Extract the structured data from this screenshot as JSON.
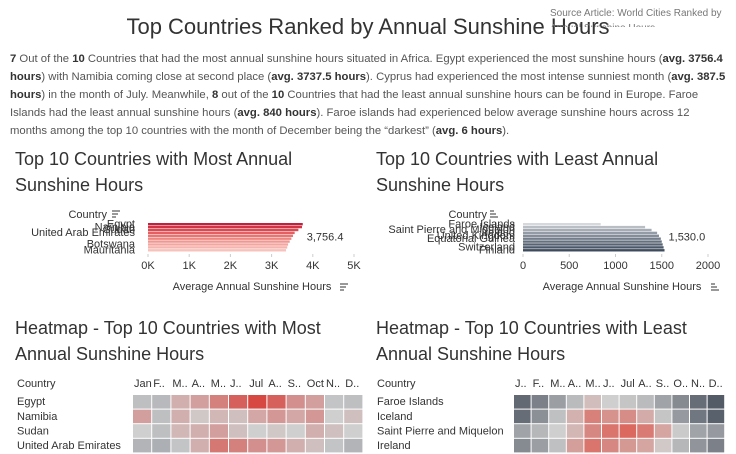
{
  "header": {
    "title": "Top Countries Ranked by Annual Sunshine Hours",
    "source": "Source Article: World Cities Ranked by Annual Sunshine Hours"
  },
  "summary": [
    "7",
    " Out of the ",
    "10",
    " Countries that had the most annual sunshine hours situated in Africa. Egypt experienced the most sunshine hours (",
    "avg. 3756.4 hours",
    ") with Namibia coming close at second place (",
    "avg. 3737.5 hours",
    "). Cyprus had experienced the most intense sunniest month (",
    "avg. 387.5 hours",
    ") in the month of July. Meanwhile, ",
    "8",
    " out of the ",
    "10",
    " Countries that had the least annual sunshine hours can be found in Europe. Faroe Islands had the least annual sunshine hours (",
    "avg. 840 hours",
    "). Faroe islands had experienced below average sunshine hours across 12 months among the top 10 countries with the month of December being the “darkest” (",
    "avg. 6 hours",
    ")."
  ],
  "chart_data": [
    {
      "type": "bar",
      "title": "Top 10 Countries with Most Annual Sunshine Hours",
      "category_label": "Country",
      "x_label": "Average Annual Sunshine Hours",
      "categories": [
        "Egypt",
        "Namibia",
        "Sudan",
        "United Arab Emirates",
        null,
        null,
        null,
        "Botswana",
        null,
        "Mauritania"
      ],
      "values": [
        3756.4,
        3737.5,
        3650,
        3560,
        3520,
        3480,
        3440,
        3400,
        3380,
        3350
      ],
      "value_labels": [
        "3,756.4",
        null,
        null,
        null,
        null,
        null,
        null,
        null,
        null,
        null
      ],
      "colors": [
        "#c2203c",
        "#cf3344",
        "#db4a52",
        "#e45f62",
        "#ea7371",
        "#ee8581",
        "#f19690",
        "#f3a69f",
        "#f5b4ad",
        "#f7c2bb"
      ],
      "xlim": [
        0,
        5000
      ],
      "xticks": [
        {
          "value": 0,
          "label": "0K"
        },
        {
          "value": 1000,
          "label": "1K"
        },
        {
          "value": 2000,
          "label": "2K"
        },
        {
          "value": 3000,
          "label": "3K"
        },
        {
          "value": 4000,
          "label": "4K"
        },
        {
          "value": 5000,
          "label": "5K"
        }
      ]
    },
    {
      "type": "bar",
      "title": "Top 10 Countries with Least Annual Sunshine Hours",
      "category_label": "Country",
      "x_label": "Average Annual Sunshine Hours",
      "categories": [
        "Faroe Islands",
        "Iceland",
        "Saint Pierre and Miquelon",
        "Ireland",
        "United Kingdom",
        "Equatorial Guinea",
        null,
        null,
        "Switzerland",
        "Finland"
      ],
      "values": [
        840,
        1320,
        1390,
        1450,
        1470,
        1490,
        1500,
        1510,
        1520,
        1530
      ],
      "value_labels": [
        null,
        null,
        null,
        null,
        null,
        null,
        null,
        null,
        null,
        "1,530.0"
      ],
      "colors": [
        "#d5d8dc",
        "#b9bec5",
        "#a5acb5",
        "#939ba6",
        "#838c98",
        "#737d8b",
        "#65707f",
        "#576373",
        "#4a5768",
        "#3e4b5d"
      ],
      "xlim": [
        0,
        2000
      ],
      "xticks": [
        0,
        500,
        1000,
        1500,
        2000
      ]
    },
    {
      "type": "heatmap",
      "title": "Heatmap - Top 10 Countries with Most Annual Sunshine Hours",
      "row_label": "Country",
      "columns": [
        "Jan",
        "F..",
        "M..",
        "A..",
        "M..",
        "J..",
        "Jul",
        "A..",
        "S..",
        "Oct",
        "N..",
        "D.."
      ],
      "rows": [
        "Egypt",
        "Namibia",
        "Sudan",
        "United Arab Emirates"
      ],
      "values": [
        [
          285,
          280,
          320,
          330,
          350,
          370,
          385,
          370,
          340,
          330,
          290,
          285
        ],
        [
          330,
          285,
          320,
          305,
          315,
          310,
          325,
          335,
          325,
          335,
          300,
          310
        ],
        [
          300,
          285,
          315,
          320,
          330,
          310,
          300,
          305,
          300,
          320,
          310,
          300
        ],
        [
          275,
          270,
          290,
          320,
          355,
          350,
          340,
          335,
          320,
          310,
          290,
          275
        ]
      ],
      "color_range": [
        200,
        400
      ],
      "colors": [
        "#5b6370",
        "#cfcfcf",
        "#d9302a"
      ]
    },
    {
      "type": "heatmap",
      "title": "Heatmap - Top 10 Countries with Least Annual Sunshine Hours",
      "row_label": "Country",
      "columns": [
        "J..",
        "F..",
        "M..",
        "A..",
        "M..",
        "J..",
        "Jul",
        "A..",
        "S..",
        "O..",
        "N..",
        "D.."
      ],
      "rows": [
        "Faroe Islands",
        "Iceland",
        "Saint Pierre and Miquelon",
        "Ireland"
      ],
      "values": [
        [
          20,
          45,
          75,
          105,
          140,
          125,
          115,
          105,
          80,
          55,
          25,
          6
        ],
        [
          25,
          60,
          110,
          150,
          190,
          175,
          180,
          155,
          115,
          70,
          35,
          12
        ],
        [
          80,
          100,
          125,
          145,
          185,
          200,
          210,
          195,
          160,
          120,
          80,
          70
        ],
        [
          55,
          75,
          110,
          165,
          200,
          185,
          170,
          160,
          130,
          100,
          65,
          45
        ]
      ],
      "color_range": [
        0,
        250
      ],
      "colors": [
        "#4d5561",
        "#cfcfcf",
        "#e0392c"
      ]
    }
  ]
}
